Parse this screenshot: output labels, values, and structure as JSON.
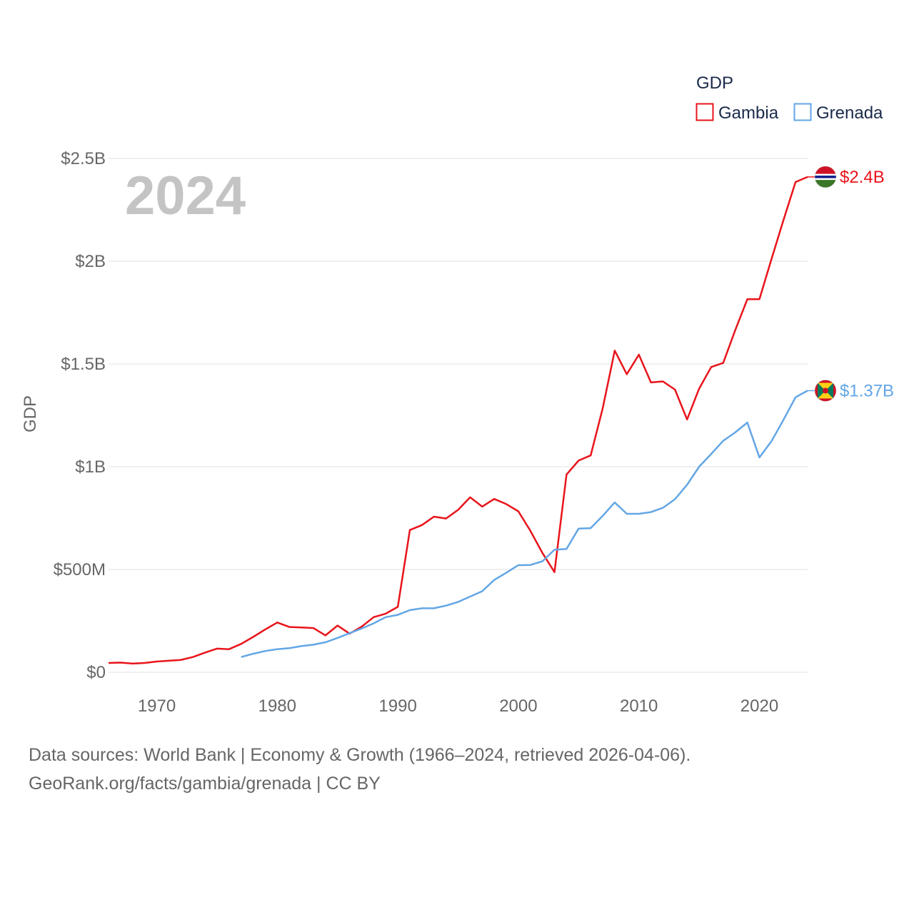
{
  "chart_data": {
    "type": "line",
    "title": "GDP",
    "ylabel": "GDP",
    "xlabel": "",
    "year_display": "2024",
    "xlim": [
      1966,
      2024
    ],
    "ylim": [
      0,
      2500000000
    ],
    "x_ticks": [
      1970,
      1980,
      1990,
      2000,
      2010,
      2020
    ],
    "y_ticks": [
      {
        "value": 0,
        "label": "$0"
      },
      {
        "value": 500000000,
        "label": "$500M"
      },
      {
        "value": 1000000000,
        "label": "$1B"
      },
      {
        "value": 1500000000,
        "label": "$1.5B"
      },
      {
        "value": 2000000000,
        "label": "$2B"
      },
      {
        "value": 2500000000,
        "label": "$2.5B"
      }
    ],
    "legend_title": "GDP",
    "legend_position": "top-right",
    "series": [
      {
        "name": "Gambia",
        "color": "#e8141b",
        "end_label": "$2.4B",
        "flag": "gambia-flag",
        "x": [
          1966,
          1967,
          1968,
          1969,
          1970,
          1971,
          1972,
          1973,
          1974,
          1975,
          1976,
          1977,
          1978,
          1979,
          1980,
          1981,
          1982,
          1983,
          1984,
          1985,
          1986,
          1987,
          1988,
          1989,
          1990,
          1991,
          1992,
          1993,
          1994,
          1995,
          1996,
          1997,
          1998,
          1999,
          2000,
          2001,
          2002,
          2003,
          2004,
          2005,
          2006,
          2007,
          2008,
          2009,
          2010,
          2011,
          2012,
          2013,
          2014,
          2015,
          2016,
          2017,
          2018,
          2019,
          2020,
          2021,
          2022,
          2023,
          2024
        ],
        "values": [
          45000000,
          47000000,
          42000000,
          45000000,
          52000000,
          56000000,
          60000000,
          74000000,
          95000000,
          115000000,
          112000000,
          138000000,
          172000000,
          208000000,
          242000000,
          220000000,
          218000000,
          215000000,
          179000000,
          227000000,
          188000000,
          222000000,
          268000000,
          285000000,
          318000000,
          692000000,
          716000000,
          757000000,
          748000000,
          790000000,
          851000000,
          806000000,
          843000000,
          818000000,
          783000000,
          688000000,
          580000000,
          487000000,
          962000000,
          1030000000,
          1055000000,
          1285000000,
          1565000000,
          1450000000,
          1545000000,
          1410000000,
          1415000000,
          1375000000,
          1230000000,
          1380000000,
          1485000000,
          1505000000,
          1665000000,
          1815000000,
          1815000000,
          2010000000,
          2200000000,
          2385000000,
          2410000000
        ]
      },
      {
        "name": "Grenada",
        "color": "#63a6e5",
        "end_label": "$1.37B",
        "flag": "grenada-flag",
        "x": [
          1977,
          1978,
          1979,
          1980,
          1981,
          1982,
          1983,
          1984,
          1985,
          1986,
          1987,
          1988,
          1989,
          1990,
          1991,
          1992,
          1993,
          1994,
          1995,
          1996,
          1997,
          1998,
          1999,
          2000,
          2001,
          2002,
          2003,
          2004,
          2005,
          2006,
          2007,
          2008,
          2009,
          2010,
          2011,
          2012,
          2013,
          2014,
          2015,
          2016,
          2017,
          2018,
          2019,
          2020,
          2021,
          2022,
          2023,
          2024
        ],
        "values": [
          74000000,
          90000000,
          103000000,
          112000000,
          117000000,
          127000000,
          134000000,
          146000000,
          167000000,
          190000000,
          213000000,
          238000000,
          268000000,
          279000000,
          302000000,
          311000000,
          311000000,
          324000000,
          342000000,
          368000000,
          394000000,
          449000000,
          484000000,
          521000000,
          522000000,
          540000000,
          596000000,
          600000000,
          699000000,
          701000000,
          761000000,
          826000000,
          771000000,
          771000000,
          779000000,
          800000000,
          842000000,
          912000000,
          1000000000,
          1062000000,
          1126000000,
          1167000000,
          1215000000,
          1045000000,
          1124000000,
          1228000000,
          1338000000,
          1370000000
        ]
      }
    ]
  },
  "footer": {
    "sources_line": "Data sources: World Bank | Economy & Growth (1966–2024, retrieved 2026-04-06).",
    "license_line": "GeoRank.org/facts/gambia/grenada | CC BY"
  }
}
